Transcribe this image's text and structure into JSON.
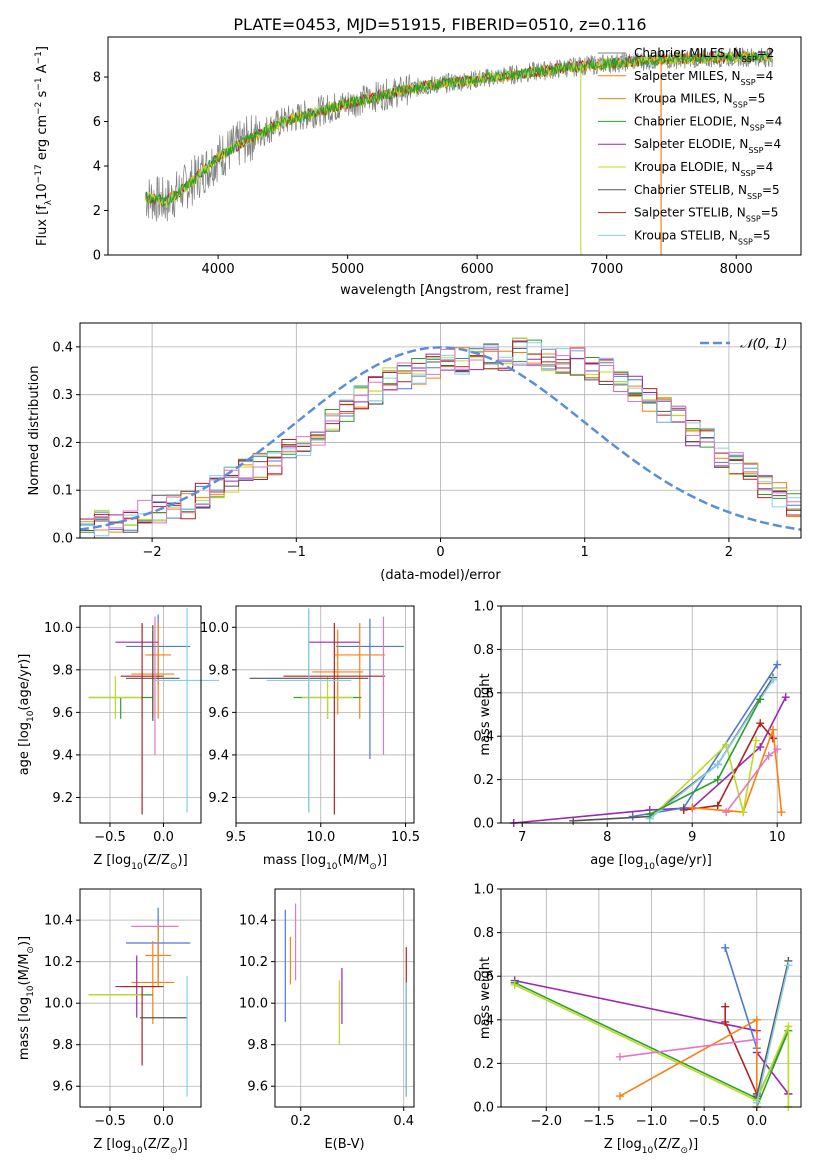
{
  "figure_title": "PLATE=0453, MJD=51915, FIBERID=0510, z=0.116",
  "colors": {
    "chabrier_miles": "#808080",
    "salpeter_miles": "#ff7f0e",
    "kroupa_miles": "#ff7f0e",
    "chabrier_elodie": "#2ca02c",
    "salpeter_elodie": "#9c27b0",
    "kroupa_elodie": "#bcdb22",
    "chabrier_stelib": "#555555",
    "salpeter_stelib": "#b22222",
    "kroupa_stelib": "#87ceeb",
    "blue": "#4c78d8",
    "pink": "#e377c2",
    "normal": "#5a8fd8"
  },
  "chart_data": [
    {
      "type": "line",
      "panel": "spectrum",
      "xlabel": "wavelength [Angstrom, rest frame]",
      "ylabel": "Flux [f",
      "ylabel_sub": "λ",
      "ylabel_rest": "10",
      "ylabel_exp": "−17",
      "ylabel_units": " erg cm",
      "ylabel_exp2": "−2",
      "ylabel_s": " s",
      "ylabel_exp3": "−1",
      "ylabel_A": " A",
      "ylabel_exp4": "−1",
      "ylabel_end": "]",
      "xlim": [
        3150,
        8500
      ],
      "ylim": [
        0,
        9.8
      ],
      "xticks": [
        4000,
        5000,
        6000,
        7000,
        8000
      ],
      "yticks": [
        0,
        2,
        4,
        6,
        8
      ],
      "grid": false,
      "continuum_x": [
        3450,
        3600,
        3800,
        4000,
        4200,
        4500,
        4800,
        5200,
        5600,
        6000,
        6400,
        6800,
        7200,
        7500,
        8000,
        8300
      ],
      "continuum_y": [
        2.6,
        2.4,
        3.3,
        4.4,
        5.1,
        6.0,
        6.5,
        7.1,
        7.6,
        7.9,
        8.2,
        8.5,
        8.7,
        8.8,
        8.9,
        8.9
      ],
      "legend": [
        {
          "label": "Chabrier MILES, N",
          "sub": "SSP",
          "eq": "=2"
        },
        {
          "label": "Salpeter MILES, N",
          "sub": "SSP",
          "eq": "=4"
        },
        {
          "label": "Kroupa MILES, N",
          "sub": "SSP",
          "eq": "=5"
        },
        {
          "label": "Chabrier ELODIE, N",
          "sub": "SSP",
          "eq": "=4"
        },
        {
          "label": "Salpeter ELODIE, N",
          "sub": "SSP",
          "eq": "=4"
        },
        {
          "label": "Kroupa ELODIE, N",
          "sub": "SSP",
          "eq": "=4"
        },
        {
          "label": "Chabrier STELIB, N",
          "sub": "SSP",
          "eq": "=5"
        },
        {
          "label": "Salpeter STELIB, N",
          "sub": "SSP",
          "eq": "=5"
        },
        {
          "label": "Kroupa STELIB, N",
          "sub": "SSP",
          "eq": "=5"
        }
      ],
      "legend_placement": "top-right"
    },
    {
      "type": "histogram",
      "panel": "residuals",
      "xlabel": "(data-model)/error",
      "ylabel": "Normed distribution",
      "xlim": [
        -2.5,
        2.5
      ],
      "ylim": [
        0,
        0.45
      ],
      "xticks": [
        -2,
        -1,
        0,
        1,
        2
      ],
      "yticks": [
        0.0,
        0.1,
        0.2,
        0.3,
        0.4
      ],
      "grid": true,
      "bin_width": 0.1,
      "bin_start": -2.5,
      "envelope": [
        0.02,
        0.03,
        0.03,
        0.04,
        0.05,
        0.06,
        0.06,
        0.07,
        0.09,
        0.11,
        0.12,
        0.14,
        0.15,
        0.16,
        0.18,
        0.2,
        0.22,
        0.24,
        0.27,
        0.3,
        0.31,
        0.33,
        0.34,
        0.35,
        0.36,
        0.37,
        0.37,
        0.38,
        0.38,
        0.38,
        0.39,
        0.39,
        0.38,
        0.37,
        0.37,
        0.36,
        0.35,
        0.33,
        0.31,
        0.29,
        0.27,
        0.25,
        0.22,
        0.2,
        0.17,
        0.15,
        0.13,
        0.11,
        0.09,
        0.07
      ],
      "normal_label": "𝒩(0, 1)",
      "legend_placement": "top-right"
    },
    {
      "type": "scatter",
      "panel": "age-vs-Z",
      "xlabel": "Z [log",
      "xlabel_sub": "10",
      "xlabel_end": "(Z/Z",
      "xlabel_sub2": "⊙",
      "xlabel_close": ")]",
      "ylabel": "age  [log",
      "ylabel_sub": "10",
      "ylabel_end": "(age/yr)]",
      "xlim": [
        -0.78,
        0.35
      ],
      "ylim": [
        9.08,
        10.1
      ],
      "xticks": [
        -0.5,
        0.0
      ],
      "xtick_labels": [
        "−0.5",
        "0.0"
      ],
      "yticks": [
        9.2,
        9.4,
        9.6,
        9.8,
        10.0
      ],
      "grid": true,
      "points": [
        {
          "x": -0.05,
          "y": 9.91,
          "xerr": 0.3,
          "yerr": [
            0.18,
            0.15
          ],
          "c": "blue"
        },
        {
          "x": -0.05,
          "y": 9.87,
          "xerr": 0.12,
          "yerr": [
            0.3,
            0.15
          ],
          "c": "salpeter_miles"
        },
        {
          "x": -0.1,
          "y": 9.78,
          "xerr": 0.2,
          "yerr": [
            0.2,
            0.2
          ],
          "c": "salpeter_miles"
        },
        {
          "x": -0.4,
          "y": 9.67,
          "xerr": 0.3,
          "yerr": [
            0.1,
            0.0
          ],
          "c": "chabrier_elodie"
        },
        {
          "x": -0.25,
          "y": 9.93,
          "xerr": 0.2,
          "yerr": [
            0.0,
            0.0
          ],
          "c": "salpeter_elodie"
        },
        {
          "x": -0.45,
          "y": 9.67,
          "xerr": 0.25,
          "yerr": [
            0.1,
            0.1
          ],
          "c": "kroupa_elodie"
        },
        {
          "x": -0.1,
          "y": 9.76,
          "xerr": 0.25,
          "yerr": [
            0.2,
            0.25
          ],
          "c": "chabrier_stelib"
        },
        {
          "x": -0.2,
          "y": 9.77,
          "xerr": 0.2,
          "yerr": [
            0.65,
            0.25
          ],
          "c": "salpeter_stelib"
        },
        {
          "x": 0.22,
          "y": 9.75,
          "xerr": 0.3,
          "yerr": [
            0.62,
            0.34
          ],
          "c": "kroupa_stelib"
        },
        {
          "x": -0.08,
          "y": 9.8,
          "xerr": 0.0,
          "yerr": [
            0.4,
            0.25
          ],
          "c": "pink"
        }
      ]
    },
    {
      "type": "scatter",
      "panel": "age-vs-mass",
      "xlabel": "mass [log",
      "xlabel_sub": "10",
      "xlabel_end": "(M/M",
      "xlabel_sub2": "⊙",
      "xlabel_close": ")]",
      "xlim": [
        9.5,
        10.55
      ],
      "ylim": [
        9.08,
        10.1
      ],
      "xticks": [
        9.5,
        10.0,
        10.5
      ],
      "xtick_labels": [
        "9.5",
        "10.0",
        "10.5"
      ],
      "yticks": [
        9.2,
        9.4,
        9.6,
        9.8,
        10.0
      ],
      "grid": true,
      "points": [
        {
          "x": 10.29,
          "y": 9.91,
          "xerr": 0.2,
          "yerr": [
            0.53,
            0.13
          ],
          "c": "blue"
        },
        {
          "x": 10.23,
          "y": 9.87,
          "xerr": 0.15,
          "yerr": [
            0.3,
            0.15
          ],
          "c": "salpeter_miles"
        },
        {
          "x": 10.1,
          "y": 9.79,
          "xerr": 0.15,
          "yerr": [
            0.2,
            0.2
          ],
          "c": "salpeter_miles"
        },
        {
          "x": 10.04,
          "y": 9.67,
          "xerr": 0.2,
          "yerr": [
            0.1,
            0.0
          ],
          "c": "chabrier_elodie"
        },
        {
          "x": 10.08,
          "y": 9.93,
          "xerr": 0.15,
          "yerr": [
            0.0,
            0.0
          ],
          "c": "salpeter_elodie"
        },
        {
          "x": 10.04,
          "y": 9.67,
          "xerr": 0.15,
          "yerr": [
            0.1,
            0.1
          ],
          "c": "kroupa_elodie"
        },
        {
          "x": 9.93,
          "y": 9.76,
          "xerr": 0.35,
          "yerr": [
            0.63,
            0.32
          ],
          "c": "chabrier_stelib"
        },
        {
          "x": 10.08,
          "y": 9.77,
          "xerr": 0.3,
          "yerr": [
            0.65,
            0.25
          ],
          "c": "salpeter_stelib"
        },
        {
          "x": 9.93,
          "y": 9.75,
          "xerr": 0.25,
          "yerr": [
            0.62,
            0.34
          ],
          "c": "kroupa_stelib"
        },
        {
          "x": 10.37,
          "y": 9.8,
          "xerr": 0.0,
          "yerr": [
            0.4,
            0.25
          ],
          "c": "pink"
        }
      ]
    },
    {
      "type": "line",
      "panel": "weight-vs-age",
      "xlabel": "age  [log",
      "xlabel_sub": "10",
      "xlabel_end": "(age/yr)]",
      "ylabel": "mass weight",
      "xlim": [
        6.75,
        10.28
      ],
      "ylim": [
        0.0,
        1.0
      ],
      "xticks": [
        7,
        8,
        9,
        10
      ],
      "yticks": [
        0.0,
        0.2,
        0.4,
        0.6,
        0.8,
        1.0
      ],
      "grid": true,
      "series": [
        {
          "c": "salpeter_elodie",
          "x": [
            6.9,
            8.5,
            9.0,
            9.8,
            10.1
          ],
          "y": [
            0.0,
            0.06,
            0.07,
            0.35,
            0.58
          ]
        },
        {
          "c": "blue",
          "x": [
            8.3,
            8.9,
            10.0
          ],
          "y": [
            0.03,
            0.07,
            0.73
          ]
        },
        {
          "c": "chabrier_stelib",
          "x": [
            7.6,
            8.5,
            9.3,
            9.95
          ],
          "y": [
            0.01,
            0.03,
            0.27,
            0.67
          ]
        },
        {
          "c": "salpeter_stelib",
          "x": [
            8.9,
            9.3,
            9.8,
            9.95
          ],
          "y": [
            0.06,
            0.08,
            0.46,
            0.39
          ]
        },
        {
          "c": "salpeter_miles",
          "x": [
            9.0,
            9.6,
            9.95,
            10.05
          ],
          "y": [
            0.07,
            0.05,
            0.43,
            0.05
          ]
        },
        {
          "c": "kroupa_elodie",
          "x": [
            8.5,
            9.4,
            9.6,
            9.75
          ],
          "y": [
            0.02,
            0.36,
            0.05,
            0.38
          ]
        },
        {
          "c": "kroupa_stelib",
          "x": [
            8.5,
            9.3,
            9.95
          ],
          "y": [
            0.02,
            0.27,
            0.66
          ]
        },
        {
          "c": "pink",
          "x": [
            9.4,
            9.9,
            10.0
          ],
          "y": [
            0.05,
            0.31,
            0.34
          ]
        },
        {
          "c": "chabrier_elodie",
          "x": [
            8.5,
            9.3,
            9.8
          ],
          "y": [
            0.04,
            0.2,
            0.57
          ]
        }
      ]
    },
    {
      "type": "scatter",
      "panel": "mass-vs-Z",
      "xlabel": "Z [log",
      "xlabel_sub": "10",
      "xlabel_end": "(Z/Z",
      "xlabel_sub2": "⊙",
      "xlabel_close": ")]",
      "ylabel": "mass [log",
      "ylabel_sub": "10",
      "ylabel_end": "(M/M",
      "ylabel_sub2": "⊙",
      "ylabel_close": ")]",
      "xlim": [
        -0.78,
        0.35
      ],
      "ylim": [
        9.5,
        10.55
      ],
      "xticks": [
        -0.5,
        0.0
      ],
      "xtick_labels": [
        "−0.5",
        "0.0"
      ],
      "yticks": [
        9.6,
        9.8,
        10.0,
        10.2,
        10.4
      ],
      "grid": true,
      "points": [
        {
          "x": -0.05,
          "y": 10.29,
          "xerr": 0.3,
          "yerr": [
            0.2,
            0.17
          ],
          "c": "blue"
        },
        {
          "x": -0.05,
          "y": 10.23,
          "xerr": 0.12,
          "yerr": [
            0.15,
            0.15
          ],
          "c": "salpeter_miles"
        },
        {
          "x": -0.1,
          "y": 10.1,
          "xerr": 0.2,
          "yerr": [
            0.2,
            0.2
          ],
          "c": "salpeter_miles"
        },
        {
          "x": -0.4,
          "y": 10.04,
          "xerr": 0.3,
          "yerr": [
            0.0,
            0.0
          ],
          "c": "chabrier_elodie"
        },
        {
          "x": -0.25,
          "y": 10.08,
          "xerr": 0.2,
          "yerr": [
            0.15,
            0.15
          ],
          "c": "salpeter_elodie"
        },
        {
          "x": -0.45,
          "y": 10.04,
          "xerr": 0.25,
          "yerr": [
            0.0,
            0.0
          ],
          "c": "kroupa_elodie"
        },
        {
          "x": 0.0,
          "y": 9.93,
          "xerr": 0.22,
          "yerr": [
            0.0,
            0.0
          ],
          "c": "chabrier_stelib"
        },
        {
          "x": -0.2,
          "y": 10.08,
          "xerr": 0.2,
          "yerr": [
            0.38,
            0.0
          ],
          "c": "salpeter_stelib"
        },
        {
          "x": 0.22,
          "y": 9.93,
          "xerr": 0.0,
          "yerr": [
            0.38,
            0.2
          ],
          "c": "kroupa_stelib"
        },
        {
          "x": -0.08,
          "y": 10.37,
          "xerr": 0.22,
          "yerr": [
            0.0,
            0.0
          ],
          "c": "pink"
        }
      ]
    },
    {
      "type": "scatter",
      "panel": "mass-vs-EBV",
      "xlabel": "E(B-V)",
      "xlim": [
        0.15,
        0.42
      ],
      "ylim": [
        9.5,
        10.55
      ],
      "xticks": [
        0.2,
        0.4
      ],
      "xtick_labels": [
        "0.2",
        "0.4"
      ],
      "yticks": [
        9.6,
        9.8,
        10.0,
        10.2,
        10.4
      ],
      "grid": true,
      "points": [
        {
          "x": 0.17,
          "y": 10.18,
          "yerr": [
            0.27,
            0.27
          ],
          "c": "blue"
        },
        {
          "x": 0.18,
          "y": 10.23,
          "yerr": [
            0.14,
            0.09
          ],
          "c": "salpeter_miles"
        },
        {
          "x": 0.19,
          "y": 10.28,
          "yerr": [
            0.17,
            0.2
          ],
          "c": "pink"
        },
        {
          "x": 0.275,
          "y": 9.96,
          "yerr": [
            0.16,
            0.15
          ],
          "c": "kroupa_elodie"
        },
        {
          "x": 0.28,
          "y": 10.04,
          "yerr": [
            0.14,
            0.13
          ],
          "c": "salpeter_elodie"
        },
        {
          "x": 0.405,
          "y": 9.9,
          "yerr": [
            0.35,
            0.37
          ],
          "c": "salpeter_stelib"
        },
        {
          "x": 0.405,
          "y": 9.85,
          "yerr": [
            0.3,
            0.25
          ],
          "c": "kroupa_stelib"
        }
      ]
    },
    {
      "type": "line",
      "panel": "weight-vs-Z",
      "xlabel": "Z [log",
      "xlabel_sub": "10",
      "xlabel_end": "(Z/Z",
      "xlabel_sub2": "⊙",
      "xlabel_close": ")]",
      "ylabel": "mass weight",
      "xlim": [
        -2.43,
        0.42
      ],
      "ylim": [
        0.0,
        1.0
      ],
      "xticks": [
        -2.0,
        -1.5,
        -1.0,
        -0.5,
        0.0
      ],
      "xtick_labels": [
        "−2.0",
        "−1.5",
        "−1.0",
        "−0.5",
        "0.0"
      ],
      "yticks": [
        0.0,
        0.2,
        0.4,
        0.6,
        0.8,
        1.0
      ],
      "grid": true,
      "series": [
        {
          "c": "salpeter_elodie",
          "x": [
            -2.3,
            0.0,
            0.0,
            0.3,
            0.3
          ],
          "y": [
            0.58,
            0.35,
            0.25,
            0.06,
            0.06
          ]
        },
        {
          "c": "chabrier_elodie",
          "x": [
            -2.3,
            0.0,
            0.3,
            0.0
          ],
          "y": [
            0.57,
            0.04,
            0.35,
            0.0
          ]
        },
        {
          "c": "kroupa_elodie",
          "x": [
            -2.3,
            0.0,
            0.3,
            0.3
          ],
          "y": [
            0.56,
            0.03,
            0.37,
            0.0
          ]
        },
        {
          "c": "blue",
          "x": [
            -0.3,
            0.0
          ],
          "y": [
            0.73,
            0.27
          ]
        },
        {
          "c": "salpeter_stelib",
          "x": [
            -0.3,
            -0.3,
            0.0
          ],
          "y": [
            0.46,
            0.39,
            0.06
          ]
        },
        {
          "c": "salpeter_miles",
          "x": [
            -1.3,
            0.0,
            0.0
          ],
          "y": [
            0.05,
            0.4,
            0.0
          ]
        },
        {
          "c": "pink",
          "x": [
            -1.3,
            0.0
          ],
          "y": [
            0.23,
            0.31
          ]
        },
        {
          "c": "chabrier_stelib",
          "x": [
            0.0,
            0.3
          ],
          "y": [
            0.05,
            0.67
          ]
        },
        {
          "c": "kroupa_stelib",
          "x": [
            0.0,
            0.3
          ],
          "y": [
            0.02,
            0.65
          ]
        }
      ]
    }
  ]
}
